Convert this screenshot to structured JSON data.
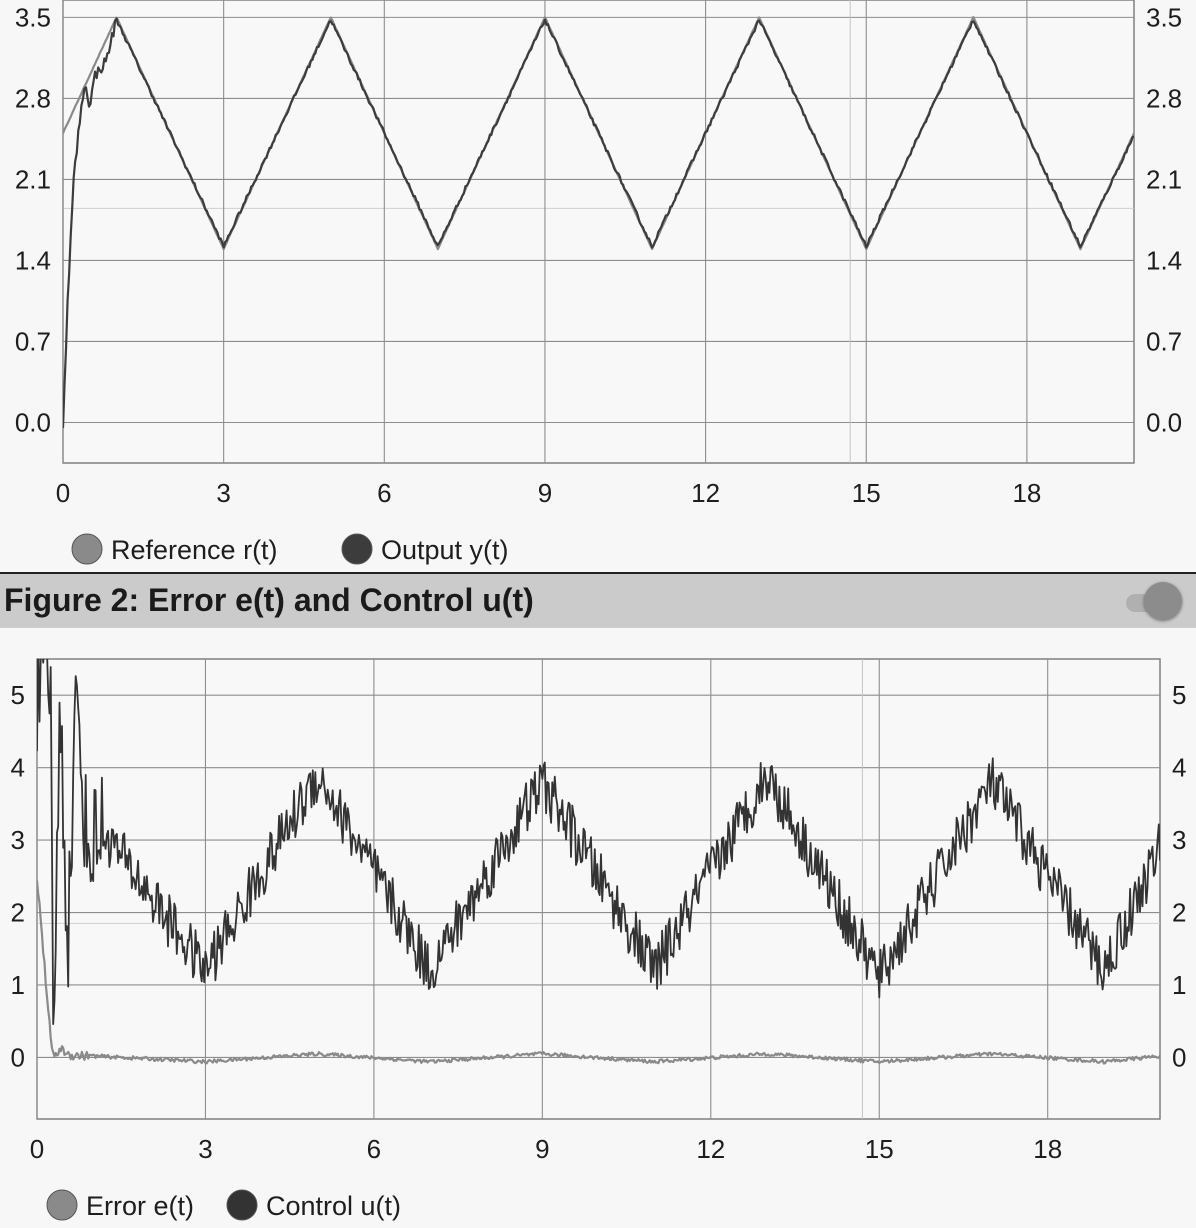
{
  "chart_data": [
    {
      "type": "line",
      "title": "",
      "xlabel": "",
      "ylabel": "",
      "xlim": [
        0,
        20
      ],
      "ylim": [
        -0.35,
        3.65
      ],
      "x_ticks": [
        "0",
        "3",
        "6",
        "9",
        "12",
        "15",
        "18"
      ],
      "y_ticks": [
        "0.0",
        "0.7",
        "1.4",
        "2.1",
        "2.8",
        "3.5"
      ],
      "grid": true,
      "legend_position": "bottom-left",
      "series": [
        {
          "name": "Reference r(t)",
          "color": "#8a8a8a",
          "shape": "triangle wave between 1.5 and 3.5, period 4, starting at 2.5",
          "x": [
            0,
            1,
            3,
            5,
            7,
            9,
            11,
            13,
            15,
            17,
            19,
            20
          ],
          "values": [
            2.5,
            3.5,
            1.5,
            3.5,
            1.5,
            3.5,
            1.5,
            3.5,
            1.5,
            3.5,
            1.5,
            2.5
          ]
        },
        {
          "name": "Output y(t)",
          "color": "#3c3c3c",
          "shape": "starts at 0, rises to track the reference within about 1 s, then follows it closely",
          "x": [
            0,
            0.1,
            0.2,
            0.3,
            0.4,
            0.5,
            0.6,
            0.8,
            1,
            3,
            5,
            7,
            9,
            11,
            13,
            15,
            17,
            19,
            20
          ],
          "values": [
            0,
            1.2,
            2.1,
            2.55,
            2.92,
            2.75,
            3.0,
            3.12,
            3.48,
            1.52,
            3.48,
            1.52,
            3.48,
            1.52,
            3.48,
            1.52,
            3.48,
            1.52,
            2.48
          ]
        }
      ]
    },
    {
      "type": "line",
      "title": "Figure 2: Error e(t) and Control u(t)",
      "xlabel": "",
      "ylabel": "",
      "xlim": [
        0,
        20
      ],
      "ylim": [
        -0.85,
        5.5
      ],
      "x_ticks": [
        "0",
        "3",
        "6",
        "9",
        "12",
        "15",
        "18"
      ],
      "y_ticks": [
        "0",
        "1",
        "2",
        "3",
        "4",
        "5"
      ],
      "grid": true,
      "legend_position": "bottom-left",
      "series": [
        {
          "name": "Error e(t)",
          "color": "#8a8a8a",
          "shape": "starts at 2.5, drops to about 0 within 0.3 s, then small oscillation around 0",
          "x": [
            0,
            0.1,
            0.2,
            0.3,
            0.4,
            0.6,
            1,
            3,
            5,
            7,
            9,
            11,
            13,
            15,
            17,
            19,
            20
          ],
          "values": [
            2.5,
            1.6,
            0.6,
            -0.05,
            0.12,
            0.03,
            0.02,
            -0.06,
            0.05,
            -0.06,
            0.05,
            -0.06,
            0.05,
            -0.06,
            0.05,
            -0.06,
            0.02
          ]
        },
        {
          "name": "Control u(t)",
          "color": "#333333",
          "shape": "saturated at 5 initially with large swings, then noisy sawtooth between about 1 and 4",
          "x": [
            0,
            0.25,
            0.3,
            0.4,
            0.55,
            0.7,
            0.9,
            1.1,
            3,
            5,
            7,
            9,
            11,
            13,
            15,
            17,
            19,
            20
          ],
          "values": [
            5.0,
            5.0,
            -0.3,
            5.0,
            1.6,
            5.0,
            2.8,
            3.2,
            1.2,
            3.9,
            1.2,
            3.8,
            1.2,
            3.9,
            1.1,
            3.8,
            1.2,
            2.9
          ]
        }
      ]
    }
  ]
}
